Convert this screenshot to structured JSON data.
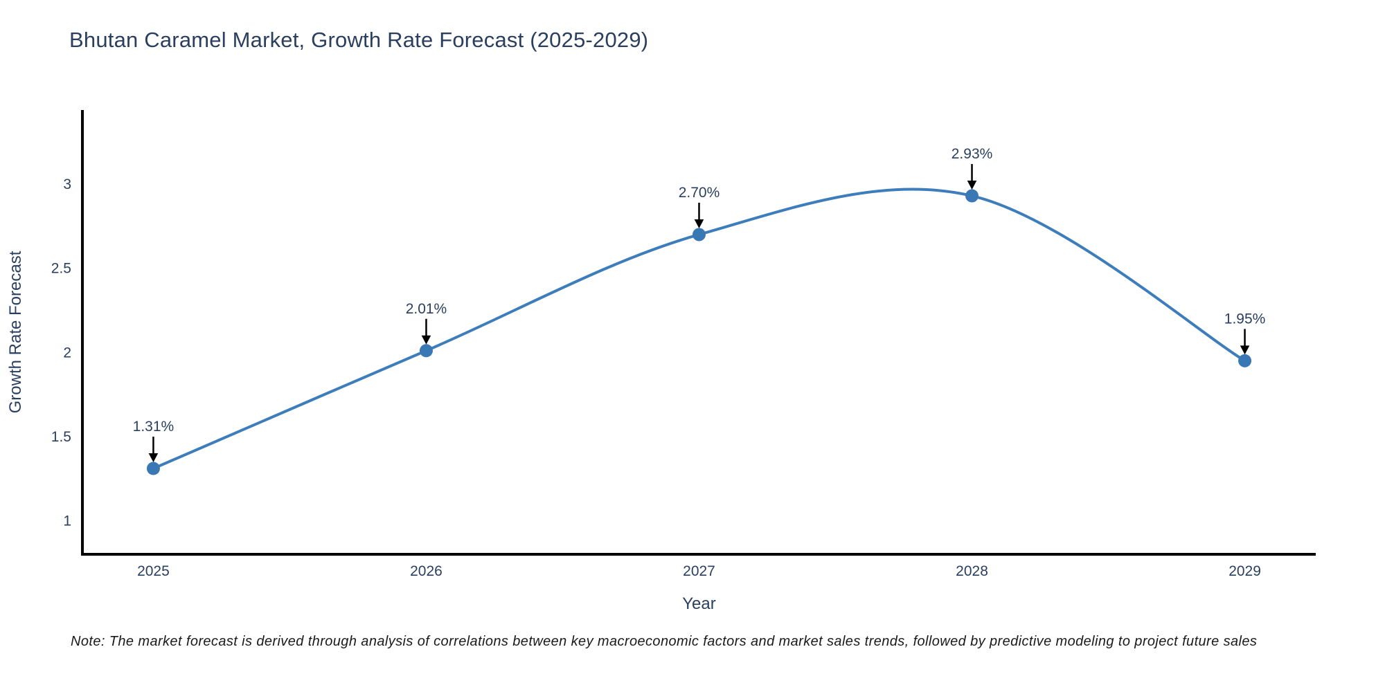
{
  "title": "Bhutan Caramel Market, Growth Rate Forecast (2025-2029)",
  "note": "Note: The market forecast is derived through analysis of correlations between key macroeconomic factors and market sales trends, followed by predictive modeling to project future sales",
  "colors": {
    "line": "#3d7dbb",
    "marker": "#3a78b5",
    "axis": "#000000",
    "text": "#2a3f5f",
    "annotation_text": "#2a3f5f",
    "annotation_arrow": "#000000",
    "note_text": "#1a1a1a",
    "background": "#ffffff"
  },
  "chart_data": {
    "type": "line",
    "title": "Bhutan Caramel Market, Growth Rate Forecast (2025-2029)",
    "x": [
      2025,
      2026,
      2027,
      2028,
      2029
    ],
    "series": [
      {
        "name": "Growth Rate Forecast",
        "values": [
          1.31,
          2.01,
          2.7,
          2.93,
          1.95
        ]
      }
    ],
    "point_labels": [
      "1.31%",
      "2.01%",
      "2.70%",
      "2.93%",
      "1.95%"
    ],
    "xlabel": "Year",
    "ylabel": "Growth Rate Forecast",
    "xticks": [
      "2025",
      "2026",
      "2027",
      "2028",
      "2029"
    ],
    "yticks": [
      1,
      1.5,
      2,
      2.5,
      3
    ],
    "ytick_labels": [
      "1",
      "1.5",
      "2",
      "2.5",
      "3"
    ],
    "xlim": [
      2024.74,
      2029.26
    ],
    "ylim": [
      0.8,
      3.44
    ],
    "line_shape": "spline",
    "markers": true,
    "grid": false,
    "legend": false,
    "annotations": "value labels with down arrows above each point"
  }
}
